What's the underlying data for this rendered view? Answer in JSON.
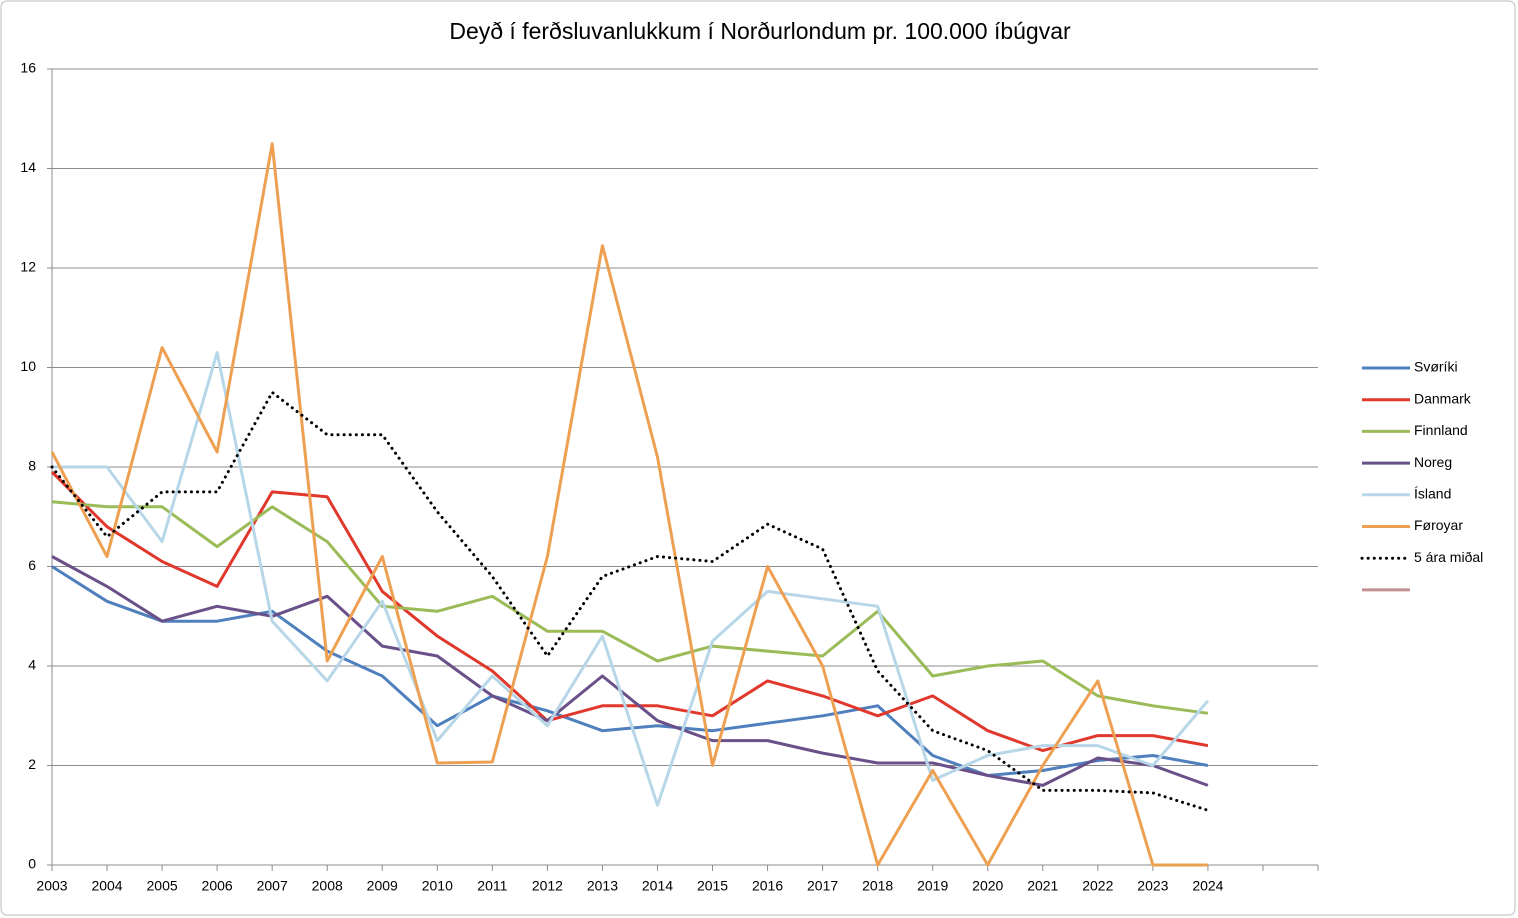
{
  "chart_data": {
    "type": "line",
    "title": "Deyð í ferðsluvanlukkum í Norðurlondum pr. 100.000 íbúgvar",
    "categories": [
      "2003",
      "2004",
      "2005",
      "2006",
      "2007",
      "2008",
      "2009",
      "2010",
      "2011",
      "2012",
      "2013",
      "2014",
      "2015",
      "2016",
      "2017",
      "2018",
      "2019",
      "2020",
      "2021",
      "2022",
      "2023",
      "2024",
      null,
      null
    ],
    "ylim": [
      0,
      16
    ],
    "yticks": [
      0,
      2,
      4,
      6,
      8,
      10,
      12,
      14,
      16
    ],
    "grid": true,
    "legend": "right",
    "series": [
      {
        "name": "Svøríki",
        "color": "#4f7fbd",
        "values": [
          6.0,
          5.3,
          4.9,
          4.9,
          5.1,
          4.3,
          3.8,
          2.8,
          3.4,
          3.1,
          2.7,
          2.8,
          2.7,
          2.85,
          3.0,
          3.2,
          2.2,
          1.8,
          1.9,
          2.1,
          2.2,
          2.0,
          null,
          null
        ]
      },
      {
        "name": "Danmark",
        "color": "#e0382c",
        "values": [
          7.9,
          6.8,
          6.1,
          5.6,
          7.5,
          7.4,
          5.5,
          4.6,
          3.9,
          2.9,
          3.2,
          3.2,
          3.0,
          3.7,
          3.4,
          3.0,
          3.4,
          2.7,
          2.3,
          2.6,
          2.6,
          2.4,
          null,
          null
        ]
      },
      {
        "name": "Finnland",
        "color": "#9bbb59",
        "values": [
          7.3,
          7.2,
          7.2,
          6.4,
          7.2,
          6.5,
          5.2,
          5.1,
          5.4,
          4.7,
          4.7,
          4.1,
          4.4,
          4.3,
          4.2,
          5.1,
          3.8,
          4.0,
          4.1,
          3.4,
          3.2,
          3.05,
          null,
          null
        ]
      },
      {
        "name": "Noreg",
        "color": "#6a5088",
        "values": [
          6.2,
          5.6,
          4.9,
          5.2,
          5.0,
          5.4,
          4.4,
          4.2,
          3.4,
          2.9,
          3.8,
          2.9,
          2.5,
          2.5,
          2.25,
          2.05,
          2.05,
          1.8,
          1.6,
          2.15,
          2.0,
          1.6,
          null,
          null
        ]
      },
      {
        "name": "Ísland",
        "color": "#b7d7e8",
        "values": [
          8.0,
          8.0,
          6.5,
          10.3,
          4.9,
          3.7,
          5.3,
          2.5,
          3.8,
          2.8,
          4.6,
          1.2,
          4.5,
          5.5,
          5.35,
          5.2,
          1.7,
          2.2,
          2.4,
          2.4,
          2.0,
          3.3,
          null,
          null
        ]
      },
      {
        "name": "Føroyar",
        "color": "#eea052",
        "values": [
          8.3,
          6.2,
          10.4,
          8.3,
          14.5,
          4.1,
          6.2,
          2.05,
          2.07,
          6.2,
          12.45,
          8.2,
          2.0,
          6.0,
          4.0,
          0,
          1.9,
          0,
          2.0,
          3.7,
          0,
          0,
          null,
          null
        ]
      },
      {
        "name": "5 ára miðal",
        "color": "#000000",
        "dashed": true,
        "values": [
          8.0,
          6.6,
          7.5,
          7.5,
          9.5,
          8.65,
          8.65,
          7.1,
          5.8,
          4.2,
          5.8,
          6.2,
          6.1,
          6.85,
          6.35,
          3.9,
          2.7,
          2.3,
          1.5,
          1.5,
          1.45,
          1.1,
          null,
          null
        ]
      },
      {
        "color": "#c49090",
        "values": [
          null,
          null,
          null,
          null,
          null,
          null,
          null,
          null,
          null,
          null,
          null,
          null,
          null,
          null,
          null,
          null,
          null,
          null,
          null,
          null,
          null,
          null,
          null,
          null
        ]
      }
    ]
  }
}
